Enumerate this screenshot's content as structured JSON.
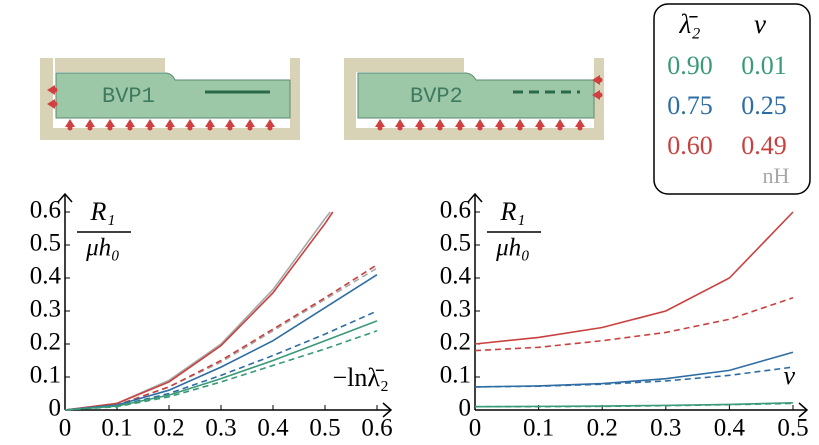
{
  "diagrams": [
    {
      "label": "BVP1"
    },
    {
      "label": "BVP2"
    }
  ],
  "legend": {
    "header": [
      "λ̄₂",
      "ν"
    ],
    "rows": [
      [
        "0.90",
        "0.01"
      ],
      [
        "0.75",
        "0.25"
      ],
      [
        "0.60",
        "0.49"
      ]
    ],
    "colors": [
      "#3a9a78",
      "#2e6da4",
      "#c9413f"
    ],
    "note": "nH",
    "note_color": "#a8a8a8"
  },
  "chart_data": [
    {
      "type": "line",
      "y_label_top": "R₁",
      "y_label_bottom": "μh₀",
      "x_label": "−lnλ̄₂",
      "xlim": [
        0,
        0.6
      ],
      "ylim": [
        0,
        0.6
      ],
      "xticks": [
        0,
        0.1,
        0.2,
        0.3,
        0.4,
        0.5,
        0.6
      ],
      "yticks": [
        0,
        0.1,
        0.2,
        0.3,
        0.4,
        0.5,
        0.6
      ],
      "series": [
        {
          "color": "#a8a8a8",
          "dash": false,
          "x": [
            0,
            0.1,
            0.2,
            0.3,
            0.4,
            0.5,
            0.51
          ],
          "values": [
            0,
            0.02,
            0.09,
            0.2,
            0.365,
            0.58,
            0.6
          ]
        },
        {
          "color": "#c9413f",
          "dash": false,
          "x": [
            0,
            0.1,
            0.2,
            0.3,
            0.4,
            0.5,
            0.515
          ],
          "values": [
            0,
            0.02,
            0.085,
            0.195,
            0.355,
            0.565,
            0.6
          ]
        },
        {
          "color": "#a8a8a8",
          "dash": true,
          "x": [
            0,
            0.1,
            0.2,
            0.3,
            0.4,
            0.5,
            0.6
          ],
          "values": [
            0,
            0.015,
            0.07,
            0.145,
            0.24,
            0.335,
            0.43
          ]
        },
        {
          "color": "#c9413f",
          "dash": true,
          "x": [
            0,
            0.1,
            0.2,
            0.3,
            0.4,
            0.5,
            0.6
          ],
          "values": [
            0,
            0.015,
            0.07,
            0.15,
            0.245,
            0.34,
            0.44
          ]
        },
        {
          "color": "#2e6da4",
          "dash": false,
          "x": [
            0,
            0.1,
            0.2,
            0.3,
            0.4,
            0.5,
            0.6
          ],
          "values": [
            0,
            0.015,
            0.06,
            0.13,
            0.21,
            0.31,
            0.41
          ]
        },
        {
          "color": "#2e6da4",
          "dash": true,
          "x": [
            0,
            0.1,
            0.2,
            0.3,
            0.4,
            0.5,
            0.6
          ],
          "values": [
            0,
            0.012,
            0.05,
            0.105,
            0.165,
            0.23,
            0.3
          ]
        },
        {
          "color": "#3a9a78",
          "dash": false,
          "x": [
            0,
            0.1,
            0.2,
            0.3,
            0.4,
            0.5,
            0.6
          ],
          "values": [
            0,
            0.012,
            0.045,
            0.095,
            0.15,
            0.21,
            0.27
          ]
        },
        {
          "color": "#3a9a78",
          "dash": true,
          "x": [
            0,
            0.1,
            0.2,
            0.3,
            0.4,
            0.5,
            0.6
          ],
          "values": [
            0,
            0.01,
            0.04,
            0.085,
            0.135,
            0.185,
            0.24
          ]
        }
      ]
    },
    {
      "type": "line",
      "y_label_top": "R₁",
      "y_label_bottom": "μh₀",
      "x_label": "ν",
      "xlim": [
        0,
        0.5
      ],
      "ylim": [
        0,
        0.6
      ],
      "xticks": [
        0,
        0.1,
        0.2,
        0.3,
        0.4,
        0.5
      ],
      "yticks": [
        0,
        0.1,
        0.2,
        0.3,
        0.4,
        0.5,
        0.6
      ],
      "series": [
        {
          "color": "#c9413f",
          "dash": false,
          "x": [
            0,
            0.1,
            0.2,
            0.3,
            0.4,
            0.5
          ],
          "values": [
            0.2,
            0.22,
            0.25,
            0.3,
            0.4,
            0.6
          ]
        },
        {
          "color": "#c9413f",
          "dash": true,
          "x": [
            0,
            0.1,
            0.2,
            0.3,
            0.4,
            0.5
          ],
          "values": [
            0.18,
            0.19,
            0.21,
            0.235,
            0.275,
            0.34
          ]
        },
        {
          "color": "#2e6da4",
          "dash": false,
          "x": [
            0,
            0.1,
            0.2,
            0.3,
            0.4,
            0.5
          ],
          "values": [
            0.07,
            0.073,
            0.08,
            0.095,
            0.12,
            0.175
          ]
        },
        {
          "color": "#2e6da4",
          "dash": true,
          "x": [
            0,
            0.1,
            0.2,
            0.3,
            0.4,
            0.5
          ],
          "values": [
            0.07,
            0.072,
            0.078,
            0.088,
            0.105,
            0.13
          ]
        },
        {
          "color": "#3a9a78",
          "dash": false,
          "x": [
            0,
            0.1,
            0.2,
            0.3,
            0.4,
            0.5
          ],
          "values": [
            0.01,
            0.011,
            0.012,
            0.014,
            0.017,
            0.022
          ]
        },
        {
          "color": "#3a9a78",
          "dash": true,
          "x": [
            0,
            0.1,
            0.2,
            0.3,
            0.4,
            0.5
          ],
          "values": [
            0.01,
            0.01,
            0.011,
            0.013,
            0.016,
            0.02
          ]
        }
      ]
    }
  ]
}
